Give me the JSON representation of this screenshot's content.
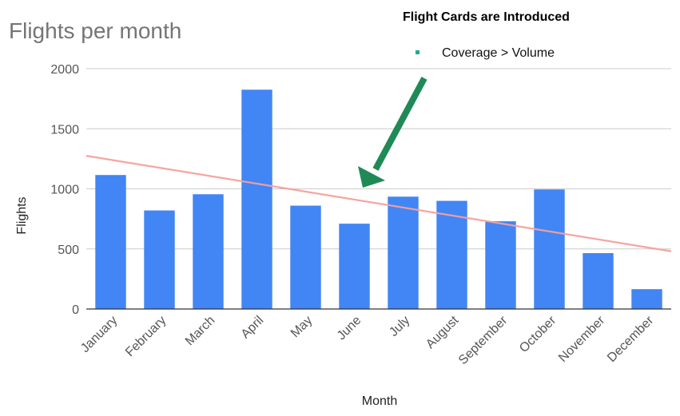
{
  "chart_data": {
    "type": "bar",
    "title": "Flights per month",
    "xlabel": "Month",
    "ylabel": "Flights",
    "ylim": [
      0,
      2000
    ],
    "yticks": [
      0,
      500,
      1000,
      1500,
      2000
    ],
    "grid": true,
    "categories": [
      "January",
      "February",
      "March",
      "April",
      "May",
      "June",
      "July",
      "August",
      "September",
      "October",
      "November",
      "December"
    ],
    "series": [
      {
        "values": [
          1115,
          820,
          955,
          1825,
          860,
          710,
          935,
          900,
          730,
          995,
          465,
          165
        ],
        "color": "#4285f4"
      }
    ],
    "trendline": {
      "type": "linear",
      "start": 1275,
      "end": 480,
      "color": "#f4a09b"
    },
    "annotation": {
      "title": "Flight Cards are Introduced",
      "legend_label": "Coverage > Volume",
      "legend_marker_color": "#26a69a",
      "arrow_color": "#1f8a56"
    }
  }
}
